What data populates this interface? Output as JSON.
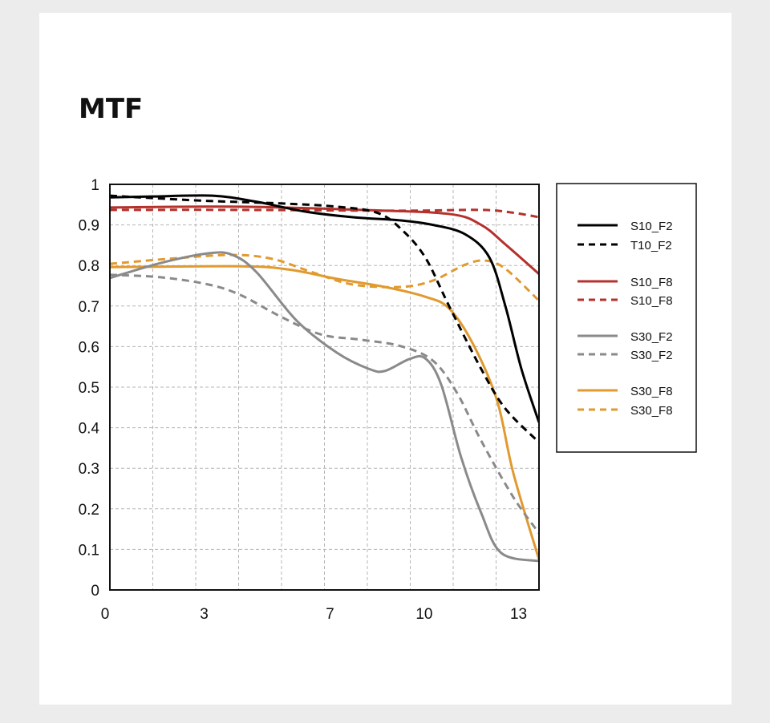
{
  "chart_data": {
    "type": "line",
    "title": "MTF",
    "xlabel": "",
    "ylabel": "",
    "xlim": [
      0,
      13.65
    ],
    "ylim": [
      0,
      1
    ],
    "xticks": [
      0,
      3,
      7,
      10,
      13
    ],
    "yticks": [
      0,
      0.1,
      0.2,
      0.3,
      0.4,
      0.5,
      0.6,
      0.7,
      0.8,
      0.9,
      1
    ],
    "ytick_labels": [
      "0",
      "0.1",
      "0.2",
      "0.3",
      "0.4",
      "0.5",
      "0.6",
      "0.7",
      "0.8",
      "0.9",
      "1"
    ],
    "grid": true,
    "legend_placement": "right",
    "series": [
      {
        "name": "S10_F2",
        "color": "#000000",
        "dashed": false,
        "x": [
          0,
          1.35,
          3.27,
          4.67,
          6.2,
          7.73,
          9.26,
          10.28,
          11.3,
          12.07,
          12.58,
          13.09,
          13.65
        ],
        "y": [
          0.968,
          0.97,
          0.972,
          0.957,
          0.933,
          0.919,
          0.911,
          0.9,
          0.877,
          0.82,
          0.7,
          0.545,
          0.413
        ]
      },
      {
        "name": "T10_F2",
        "color": "#000000",
        "dashed": true,
        "x": [
          0,
          2.88,
          5.43,
          7.22,
          8.5,
          9.26,
          10.03,
          10.79,
          11.81,
          12.58,
          13.65
        ],
        "y": [
          0.972,
          0.96,
          0.953,
          0.945,
          0.93,
          0.89,
          0.82,
          0.7,
          0.545,
          0.447,
          0.364
        ]
      },
      {
        "name": "S10_F8",
        "color": "#b5312b",
        "dashed": false,
        "x": [
          0,
          4.16,
          7.98,
          10.79,
          11.81,
          12.58,
          13.65
        ],
        "y": [
          0.943,
          0.945,
          0.937,
          0.927,
          0.9,
          0.852,
          0.779
        ]
      },
      {
        "name": "S10_F8",
        "color": "#b5312b",
        "dashed": true,
        "x": [
          0,
          4.16,
          9.26,
          11.81,
          12.83,
          13.65
        ],
        "y": [
          0.937,
          0.937,
          0.935,
          0.937,
          0.93,
          0.919
        ]
      },
      {
        "name": "S30_F2",
        "color": "#8a8a8a",
        "dashed": false,
        "x": [
          0,
          1.61,
          3.14,
          3.9,
          4.67,
          5.94,
          7.22,
          8.24,
          8.75,
          9.52,
          10.03,
          10.54,
          11.17,
          11.81,
          12.45,
          13.65
        ],
        "y": [
          0.769,
          0.806,
          0.83,
          0.826,
          0.783,
          0.664,
          0.585,
          0.545,
          0.54,
          0.569,
          0.571,
          0.506,
          0.328,
          0.19,
          0.091,
          0.071
        ]
      },
      {
        "name": "S30_F2",
        "color": "#8a8a8a",
        "dashed": true,
        "x": [
          0,
          1.61,
          3.14,
          4.16,
          5.43,
          6.71,
          7.98,
          9.26,
          10.28,
          11.04,
          11.81,
          12.83,
          13.65
        ],
        "y": [
          0.777,
          0.771,
          0.753,
          0.727,
          0.674,
          0.63,
          0.617,
          0.601,
          0.565,
          0.486,
          0.368,
          0.229,
          0.14
        ]
      },
      {
        "name": "S30_F8",
        "color": "#e09a2f",
        "dashed": false,
        "x": [
          0,
          4.16,
          5.69,
          7.22,
          8.75,
          10.03,
          10.79,
          11.56,
          12.32,
          12.83,
          13.65
        ],
        "y": [
          0.796,
          0.798,
          0.79,
          0.767,
          0.747,
          0.723,
          0.694,
          0.605,
          0.466,
          0.289,
          0.075
        ]
      },
      {
        "name": "S30_F8",
        "color": "#e09a2f",
        "dashed": true,
        "x": [
          0,
          2.12,
          3.9,
          5.18,
          6.45,
          7.73,
          9.26,
          10.28,
          11.3,
          11.94,
          12.58,
          13.65
        ],
        "y": [
          0.804,
          0.818,
          0.826,
          0.816,
          0.783,
          0.753,
          0.747,
          0.763,
          0.802,
          0.812,
          0.792,
          0.713
        ]
      }
    ]
  }
}
